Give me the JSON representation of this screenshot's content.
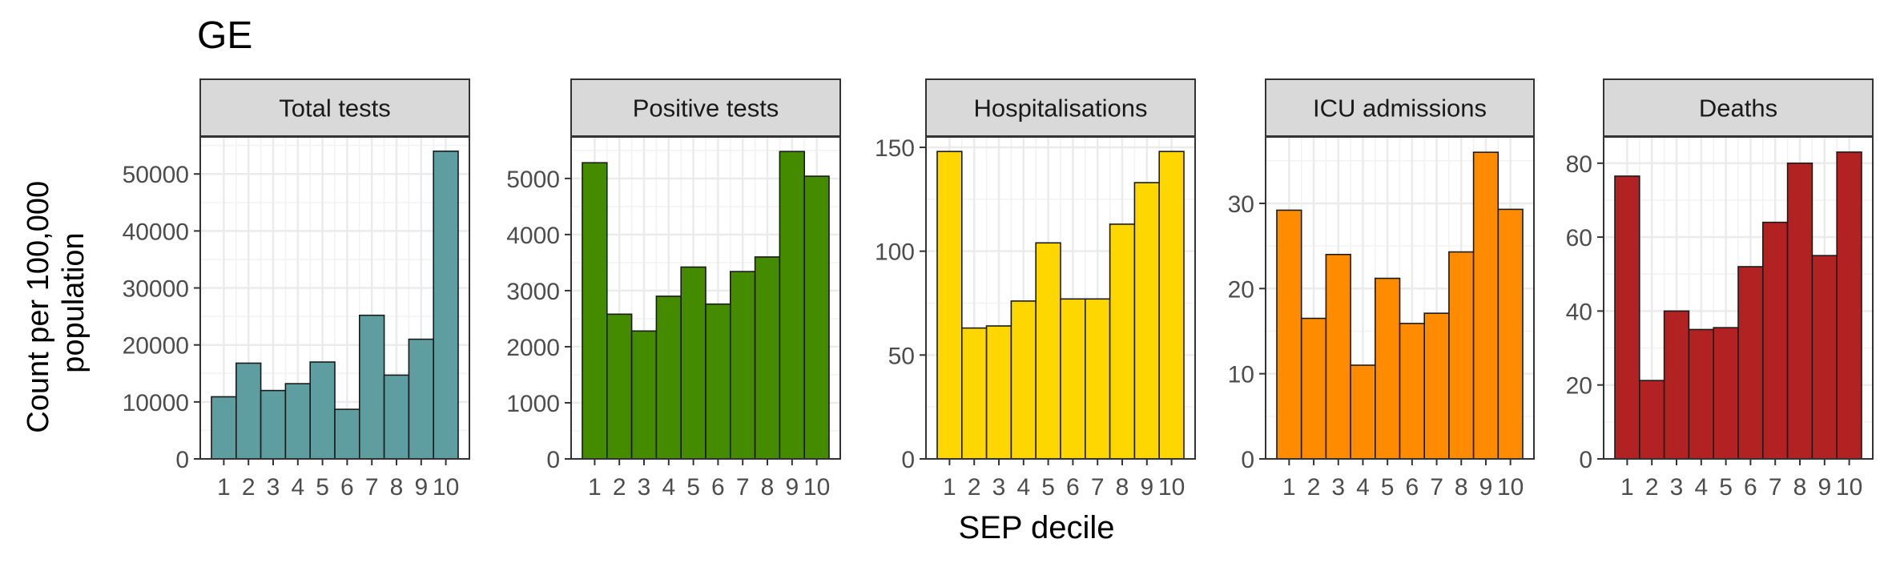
{
  "title": "GE",
  "ylabel_lines": [
    "Count per 100,000",
    "population"
  ],
  "xlabel": "SEP decile",
  "x_tick_labels": [
    "1",
    "2",
    "3",
    "4",
    "5",
    "6",
    "7",
    "8",
    "9",
    "10"
  ],
  "chart_data": [
    {
      "type": "bar",
      "title": "Total tests",
      "categories": [
        "1",
        "2",
        "3",
        "4",
        "5",
        "6",
        "7",
        "8",
        "9",
        "10"
      ],
      "values": [
        10900,
        16800,
        12000,
        13200,
        17000,
        8700,
        25200,
        14700,
        21000,
        54000
      ],
      "ylim": [
        0,
        56500
      ],
      "yticks": [
        0,
        10000,
        20000,
        30000,
        40000,
        50000
      ],
      "color": "#5f9ea0"
    },
    {
      "type": "bar",
      "title": "Positive tests",
      "categories": [
        "1",
        "2",
        "3",
        "4",
        "5",
        "6",
        "7",
        "8",
        "9",
        "10"
      ],
      "values": [
        5280,
        2580,
        2280,
        2900,
        3420,
        2760,
        3340,
        3600,
        5480,
        5040
      ],
      "ylim": [
        0,
        5740
      ],
      "yticks": [
        0,
        1000,
        2000,
        3000,
        4000,
        5000
      ],
      "color": "#458b00"
    },
    {
      "type": "bar",
      "title": "Hospitalisations",
      "categories": [
        "1",
        "2",
        "3",
        "4",
        "5",
        "6",
        "7",
        "8",
        "9",
        "10"
      ],
      "values": [
        148,
        63,
        64,
        76,
        104,
        77,
        77,
        113,
        133,
        148
      ],
      "ylim": [
        0,
        155
      ],
      "yticks": [
        0,
        50,
        100,
        150
      ],
      "color": "#ffd700"
    },
    {
      "type": "bar",
      "title": "ICU admissions",
      "categories": [
        "1",
        "2",
        "3",
        "4",
        "5",
        "6",
        "7",
        "8",
        "9",
        "10"
      ],
      "values": [
        29.2,
        16.5,
        24.0,
        11.0,
        21.2,
        15.9,
        17.1,
        24.3,
        36.0,
        29.3
      ],
      "ylim": [
        0,
        37.8
      ],
      "yticks": [
        0,
        10,
        20,
        30
      ],
      "color": "#ff8c00"
    },
    {
      "type": "bar",
      "title": "Deaths",
      "categories": [
        "1",
        "2",
        "3",
        "4",
        "5",
        "6",
        "7",
        "8",
        "9",
        "10"
      ],
      "values": [
        76.5,
        21.2,
        40.0,
        35.0,
        35.5,
        52.0,
        64.0,
        80.0,
        55.0,
        83.0
      ],
      "ylim": [
        0,
        87.1
      ],
      "yticks": [
        0,
        20,
        40,
        60,
        80
      ],
      "color": "#b22222"
    }
  ]
}
